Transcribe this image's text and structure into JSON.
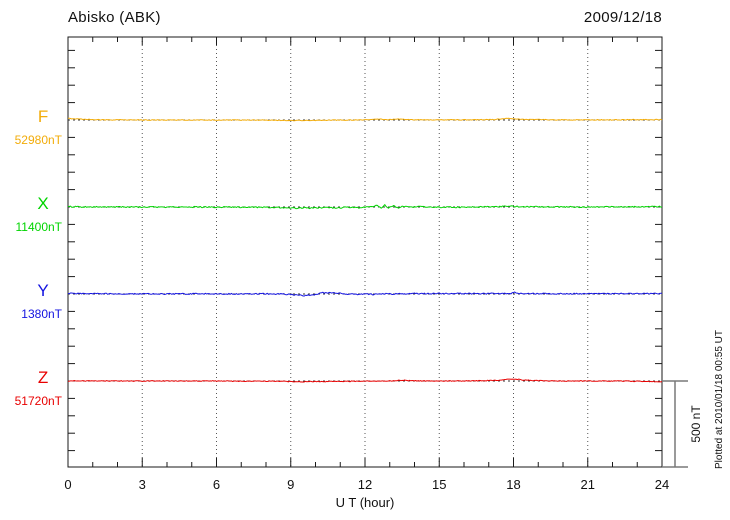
{
  "header": {
    "title": "Abisko (ABK)",
    "date": "2009/12/18"
  },
  "chart_data": {
    "type": "line",
    "station": "Abisko",
    "station_code": "ABK",
    "date": "2009/12/18",
    "xlabel": "U T (hour)",
    "x_range": [
      0,
      24
    ],
    "x_ticks": [
      0,
      3,
      6,
      9,
      12,
      15,
      18,
      21,
      24
    ],
    "x_minor_tick_every_hours": 1,
    "grid": "vertical dotted lines every 3 hours; dotted horizontal baseline under each trace",
    "y_tick_interval_nT": 100,
    "trace_offset_nT": 500,
    "scale_bar": {
      "label": "500 nT",
      "value_nT": 500
    },
    "plotted_note": "Plotted at 2010/01/18 00:55 UT",
    "series": [
      {
        "name": "F",
        "baseline_label": "52980nT",
        "baseline_nT": 52980,
        "color": "#F2AC0A",
        "noise_nT": 2.2,
        "deviation_keypoints_nT": [
          [
            0,
            9
          ],
          [
            0.3,
            6
          ],
          [
            0.8,
            3
          ],
          [
            1.5,
            1
          ],
          [
            3,
            0
          ],
          [
            6,
            0
          ],
          [
            8,
            -1
          ],
          [
            9,
            -3
          ],
          [
            9.6,
            -3
          ],
          [
            10.5,
            -1
          ],
          [
            11.5,
            0
          ],
          [
            12.3,
            3
          ],
          [
            12.6,
            5
          ],
          [
            12.9,
            2
          ],
          [
            13.3,
            5
          ],
          [
            13.7,
            2
          ],
          [
            14.5,
            1
          ],
          [
            16,
            1
          ],
          [
            17,
            2
          ],
          [
            17.5,
            5
          ],
          [
            17.75,
            10
          ],
          [
            18,
            6
          ],
          [
            18.4,
            3
          ],
          [
            19,
            2
          ],
          [
            20,
            1
          ],
          [
            21,
            1
          ],
          [
            22,
            1
          ],
          [
            23,
            2
          ],
          [
            24,
            2
          ]
        ]
      },
      {
        "name": "X",
        "baseline_label": "11400nT",
        "baseline_nT": 11400,
        "color": "#00D400",
        "noise_nT": 3.5,
        "deviation_keypoints_nT": [
          [
            0,
            3
          ],
          [
            0.5,
            1
          ],
          [
            1,
            0
          ],
          [
            3,
            0
          ],
          [
            5,
            0
          ],
          [
            7,
            -1
          ],
          [
            8.5,
            -2
          ],
          [
            9.2,
            -7
          ],
          [
            9.5,
            -5
          ],
          [
            9.9,
            -7
          ],
          [
            10.3,
            -4
          ],
          [
            10.8,
            -5
          ],
          [
            11.3,
            -2
          ],
          [
            11.8,
            -4
          ],
          [
            12.2,
            0
          ],
          [
            12.5,
            9
          ],
          [
            12.65,
            -8
          ],
          [
            12.8,
            11
          ],
          [
            12.95,
            -5
          ],
          [
            13.15,
            7
          ],
          [
            13.35,
            -6
          ],
          [
            13.55,
            6
          ],
          [
            13.8,
            -2
          ],
          [
            14.1,
            2
          ],
          [
            14.5,
            0
          ],
          [
            15.5,
            -1
          ],
          [
            16.5,
            0
          ],
          [
            17.5,
            2
          ],
          [
            17.9,
            5
          ],
          [
            18.2,
            2
          ],
          [
            19,
            1
          ],
          [
            20,
            0
          ],
          [
            21,
            0
          ],
          [
            22,
            1
          ],
          [
            23,
            1
          ],
          [
            24,
            2
          ]
        ]
      },
      {
        "name": "Y",
        "baseline_label": "1380nT",
        "baseline_nT": 1380,
        "color": "#1414E0",
        "noise_nT": 3.5,
        "deviation_keypoints_nT": [
          [
            0,
            3
          ],
          [
            1,
            2
          ],
          [
            2,
            1
          ],
          [
            3,
            1
          ],
          [
            4,
            0
          ],
          [
            5,
            1
          ],
          [
            6,
            0
          ],
          [
            7,
            0
          ],
          [
            8,
            1
          ],
          [
            8.8,
            -1
          ],
          [
            9.2,
            -6
          ],
          [
            9.5,
            -9
          ],
          [
            9.8,
            -7
          ],
          [
            10.1,
            -1
          ],
          [
            10.3,
            8
          ],
          [
            10.45,
            4
          ],
          [
            10.6,
            9
          ],
          [
            10.75,
            5
          ],
          [
            10.9,
            6
          ],
          [
            11.1,
            2
          ],
          [
            11.4,
            -1
          ],
          [
            11.7,
            -3
          ],
          [
            12,
            1
          ],
          [
            12.3,
            -2
          ],
          [
            12.7,
            2
          ],
          [
            13,
            0
          ],
          [
            13.5,
            1
          ],
          [
            14,
            3
          ],
          [
            14.5,
            2
          ],
          [
            15,
            3
          ],
          [
            15.5,
            2
          ],
          [
            16,
            3
          ],
          [
            16.5,
            2
          ],
          [
            17,
            2
          ],
          [
            17.5,
            3
          ],
          [
            17.9,
            4
          ],
          [
            18.05,
            11
          ],
          [
            18.2,
            5
          ],
          [
            18.5,
            3
          ],
          [
            19,
            2
          ],
          [
            20,
            2
          ],
          [
            21,
            2
          ],
          [
            22,
            2
          ],
          [
            23,
            2
          ],
          [
            24,
            3
          ]
        ]
      },
      {
        "name": "Z",
        "baseline_label": "51720nT",
        "baseline_nT": 51720,
        "color": "#E80000",
        "noise_nT": 2.2,
        "deviation_keypoints_nT": [
          [
            0,
            1
          ],
          [
            1,
            0
          ],
          [
            2,
            0
          ],
          [
            3,
            0
          ],
          [
            4,
            0
          ],
          [
            5,
            0
          ],
          [
            6,
            0
          ],
          [
            7,
            -1
          ],
          [
            8,
            -1
          ],
          [
            9,
            -3
          ],
          [
            9.5,
            -4
          ],
          [
            10,
            -3
          ],
          [
            10.6,
            -3
          ],
          [
            11.2,
            -2
          ],
          [
            12,
            -1
          ],
          [
            12.8,
            0
          ],
          [
            13.3,
            3
          ],
          [
            13.6,
            4
          ],
          [
            13.9,
            1
          ],
          [
            14.5,
            0
          ],
          [
            15.5,
            0
          ],
          [
            16.5,
            1
          ],
          [
            17.2,
            3
          ],
          [
            17.6,
            8
          ],
          [
            17.9,
            12
          ],
          [
            18.1,
            10
          ],
          [
            18.4,
            6
          ],
          [
            18.8,
            3
          ],
          [
            19.3,
            1
          ],
          [
            20,
            0
          ],
          [
            21,
            0
          ],
          [
            22,
            0
          ],
          [
            22.8,
            -1
          ],
          [
            23.4,
            -3
          ],
          [
            24,
            -4
          ]
        ]
      }
    ]
  }
}
